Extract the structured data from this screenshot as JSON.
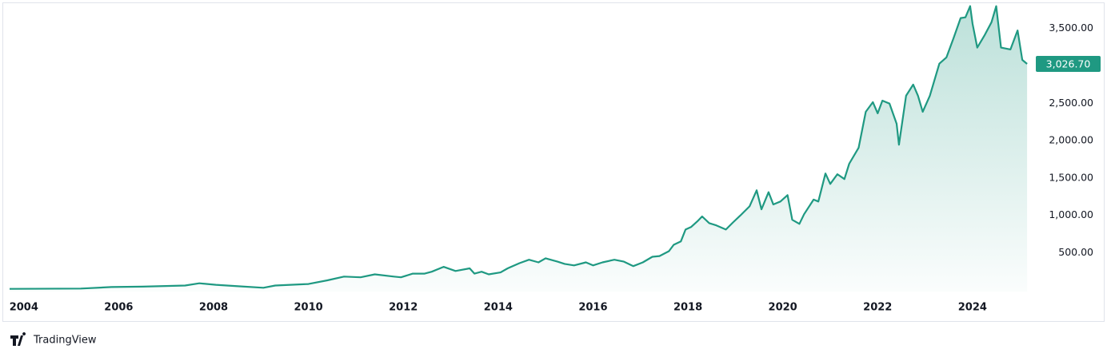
{
  "chart_data": {
    "type": "area",
    "x": [
      2003.7,
      2005.2,
      2005.85,
      2006.5,
      2007.4,
      2007.7,
      2008.05,
      2008.55,
      2009.05,
      2009.3,
      2010.0,
      2010.4,
      2010.75,
      2011.1,
      2011.4,
      2011.8,
      2011.95,
      2012.2,
      2012.45,
      2012.6,
      2012.85,
      2013.1,
      2013.4,
      2013.5,
      2013.65,
      2013.8,
      2014.05,
      2014.2,
      2014.45,
      2014.65,
      2014.85,
      2015.0,
      2015.25,
      2015.4,
      2015.6,
      2015.85,
      2016.0,
      2016.2,
      2016.45,
      2016.65,
      2016.85,
      2017.05,
      2017.25,
      2017.4,
      2017.6,
      2017.7,
      2017.85,
      2017.95,
      2018.07,
      2018.2,
      2018.3,
      2018.45,
      2018.6,
      2018.8,
      2018.95,
      2019.1,
      2019.3,
      2019.45,
      2019.55,
      2019.7,
      2019.8,
      2019.95,
      2020.1,
      2020.2,
      2020.35,
      2020.45,
      2020.65,
      2020.75,
      2020.9,
      2021.0,
      2021.15,
      2021.3,
      2021.4,
      2021.6,
      2021.75,
      2021.9,
      2022.0,
      2022.1,
      2022.25,
      2022.4,
      2022.45,
      2022.6,
      2022.75,
      2022.85,
      2022.95,
      2023.1,
      2023.3,
      2023.45,
      2023.6,
      2023.75,
      2023.85,
      2023.95,
      2024.0,
      2024.1,
      2024.25,
      2024.4,
      2024.5,
      2024.6,
      2024.8,
      2024.95,
      2025.05,
      2025.15
    ],
    "values": [
      15,
      20,
      40,
      45,
      60,
      90,
      70,
      50,
      30,
      60,
      80,
      130,
      180,
      170,
      210,
      180,
      170,
      220,
      220,
      245,
      310,
      255,
      290,
      220,
      245,
      210,
      235,
      290,
      360,
      405,
      370,
      425,
      380,
      350,
      330,
      370,
      330,
      370,
      405,
      380,
      320,
      370,
      445,
      455,
      520,
      605,
      650,
      810,
      845,
      920,
      985,
      895,
      865,
      810,
      905,
      995,
      1120,
      1335,
      1080,
      1310,
      1145,
      1185,
      1270,
      940,
      885,
      1015,
      1210,
      1185,
      1560,
      1420,
      1550,
      1485,
      1690,
      1905,
      2385,
      2515,
      2365,
      2535,
      2495,
      2225,
      1945,
      2600,
      2750,
      2600,
      2385,
      2600,
      3030,
      3115,
      3370,
      3640,
      3650,
      3800,
      3565,
      3245,
      3405,
      3585,
      3800,
      3245,
      3220,
      3475,
      3080,
      3026.7
    ],
    "color": "#1f9982",
    "xlim": [
      2003.7,
      2025.25
    ],
    "ylim": [
      -20,
      3850
    ],
    "xticks": [
      2004,
      2006,
      2008,
      2010,
      2012,
      2014,
      2016,
      2018,
      2020,
      2022,
      2024
    ],
    "yticks": [
      {
        "value": 500,
        "label": "500.00"
      },
      {
        "value": 1000,
        "label": "1,000.00"
      },
      {
        "value": 1500,
        "label": "1,500.00"
      },
      {
        "value": 2000,
        "label": "2,000.00"
      },
      {
        "value": 2500,
        "label": "2,500.00"
      },
      {
        "value": 3500,
        "label": "3,500.00"
      }
    ],
    "last_value": {
      "value": 3026.7,
      "label": "3,026.70"
    },
    "grid": false
  },
  "brand": "TradingView"
}
